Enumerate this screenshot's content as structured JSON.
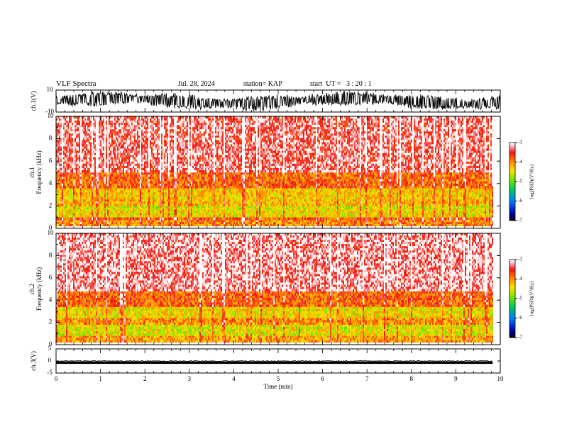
{
  "header": {
    "title": "VLF Spectra",
    "date": "Jul. 28, 2024",
    "station": "station= KAP",
    "start": "start  UT =   3 : 20 : 1"
  },
  "chart_data": [
    {
      "type": "line",
      "name": "ch1-waveform",
      "ylabel": "ch.1(V)",
      "ylim": [
        -10,
        10
      ],
      "y_ticks": [
        "10",
        "-10"
      ],
      "x_range": [
        0,
        10
      ],
      "data_extent_min": 9.83,
      "description_levels": {
        "typical_min": -6,
        "typical_max": 8
      }
    },
    {
      "type": "heatmap",
      "name": "ch1-spectrogram",
      "ylabel": "ch.1\nFrequency (kHz)",
      "ylim": [
        0,
        10
      ],
      "y_ticks": [
        "0",
        "2",
        "4",
        "6",
        "8",
        "10"
      ],
      "x_range": [
        0,
        9.83
      ],
      "colorbar": {
        "label": "log(PSD)(V²/Hz)",
        "range": [
          -7,
          -3
        ],
        "ticks": [
          "-3",
          "-4",
          "-5",
          "-6",
          "-7"
        ]
      },
      "bands_khz": [
        {
          "from": 0.2,
          "to": 0.75,
          "level": -4.0
        },
        {
          "from": 0.75,
          "to": 1.0,
          "level": -3.7
        },
        {
          "from": 1.0,
          "to": 1.7,
          "level": -4.4
        },
        {
          "from": 1.7,
          "to": 2.0,
          "level": -4.6
        },
        {
          "from": 2.0,
          "to": 2.6,
          "level": -4.2
        },
        {
          "from": 2.6,
          "to": 3.6,
          "level": -4.3
        },
        {
          "from": 3.6,
          "to": 5.0,
          "level": -3.8
        },
        {
          "from": 5.0,
          "to": 10.0,
          "level": -3.3
        }
      ]
    },
    {
      "type": "heatmap",
      "name": "ch2-spectrogram",
      "ylabel": "ch.2\nFrequency (kHz)",
      "ylim": [
        0,
        10
      ],
      "y_ticks": [
        "0",
        "2",
        "4",
        "6",
        "8",
        "10"
      ],
      "x_range": [
        0,
        9.83
      ],
      "colorbar": {
        "label": "log(PSD)(V²/Hz)",
        "range": [
          -7,
          -3
        ],
        "ticks": [
          "-3",
          "-4",
          "-5",
          "-6",
          "-7"
        ]
      },
      "bands_khz": [
        {
          "from": 0.2,
          "to": 0.8,
          "level": -4.1
        },
        {
          "from": 0.8,
          "to": 1.8,
          "level": -4.5
        },
        {
          "from": 1.8,
          "to": 2.4,
          "level": -4.0
        },
        {
          "from": 2.4,
          "to": 3.4,
          "level": -4.4
        },
        {
          "from": 3.4,
          "to": 4.8,
          "level": -3.8
        },
        {
          "from": 4.8,
          "to": 10.0,
          "level": -3.2
        }
      ]
    },
    {
      "type": "line",
      "name": "ch3-waveform",
      "ylabel": "ch.3(V)",
      "ylim": [
        -5,
        5
      ],
      "y_ticks": [
        "5",
        "0",
        "-5"
      ],
      "x_range": [
        0,
        9.83
      ],
      "level_band": [
        -1.2,
        -0.2
      ]
    }
  ],
  "x_axis": {
    "label": "Time (min)",
    "ticks": [
      "0",
      "1",
      "2",
      "3",
      "4",
      "5",
      "6",
      "7",
      "8",
      "9",
      "10"
    ],
    "range": [
      0,
      10
    ]
  }
}
